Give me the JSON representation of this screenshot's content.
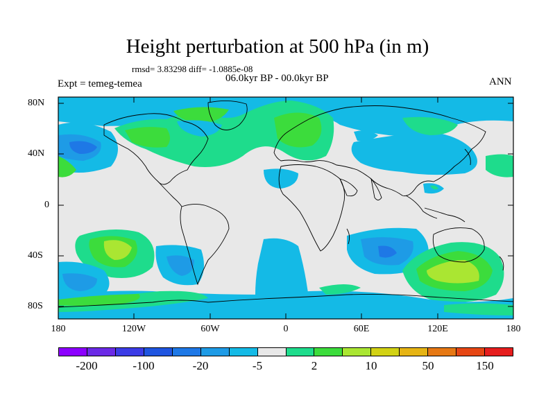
{
  "title": "Height perturbation at 500 hPa (in m)",
  "rmsd_text": "rmsd= 3.83298 diff= -1.0885e-08",
  "expt_text": "Expt = temeg-temea",
  "period_text": "06.0kyr BP - 00.0kyr BP",
  "season_text": "ANN",
  "y_ticks": [
    "80N",
    "40N",
    "0",
    "40S",
    "80S"
  ],
  "x_ticks": [
    "180",
    "120W",
    "60W",
    "0",
    "60E",
    "120E",
    "180"
  ],
  "colorbar": {
    "colors": [
      "#8c00ff",
      "#6b2ae6",
      "#3c3ce6",
      "#1f55e0",
      "#1e78e6",
      "#1e9be6",
      "#14bae6",
      "#e8e8e8",
      "#1edc8c",
      "#3cdc3c",
      "#aae632",
      "#d2d214",
      "#e6b414",
      "#e67814",
      "#e64614",
      "#e61e1e"
    ],
    "labels": [
      "-200",
      "-100",
      "-20",
      "-5",
      "2",
      "10",
      "50",
      "150"
    ]
  },
  "legend_colors": {
    "neutral": "#e8e8e8",
    "neg_light": "#14bae6",
    "neg_mid": "#1e9be6",
    "neg_strong": "#1e78e6",
    "pos_light": "#1edc8c",
    "pos_mid": "#3cdc3c",
    "pos_strong": "#aae632"
  }
}
